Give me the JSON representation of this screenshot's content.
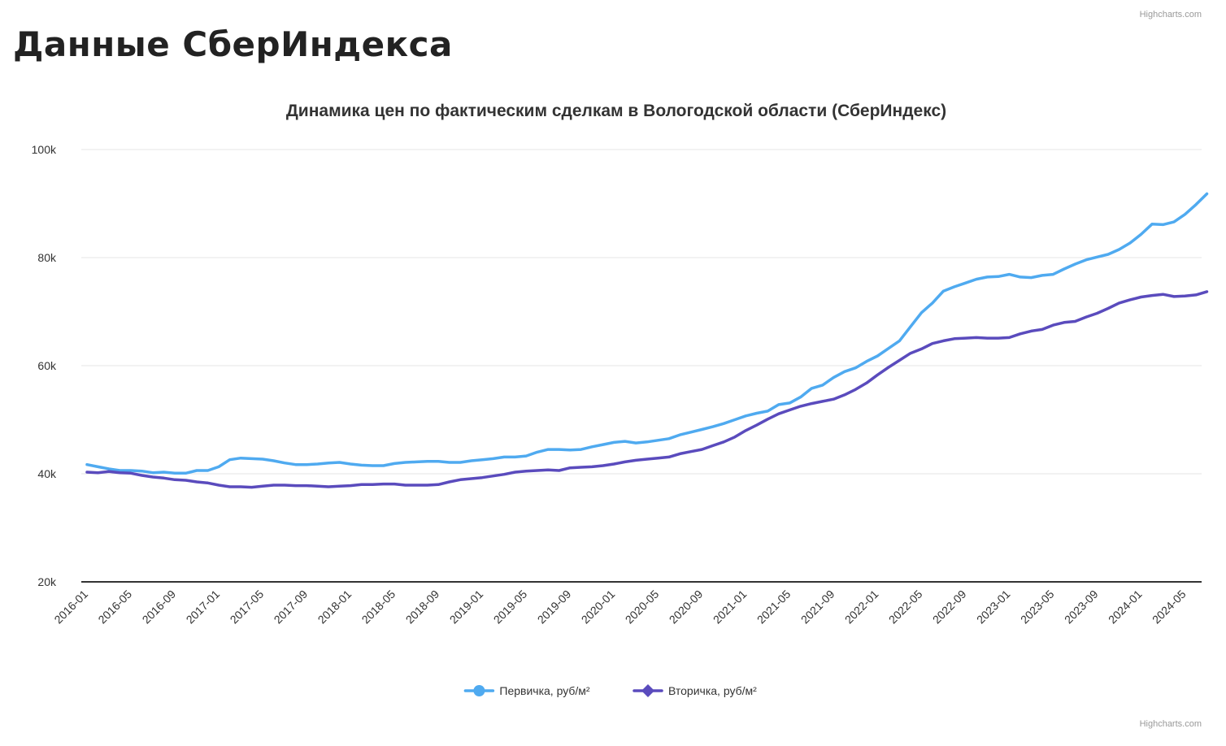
{
  "page": {
    "title": "Данные СберИндекса",
    "credits": "Highcharts.com"
  },
  "chart_data": {
    "type": "line",
    "title": "Динамика цен по фактическим сделкам в Вологодской области (СберИндекс)",
    "xlabel": "",
    "ylabel": "",
    "ylim": [
      20000,
      100000
    ],
    "yticks": [
      20000,
      40000,
      60000,
      80000,
      100000
    ],
    "ytick_labels": [
      "20k",
      "40k",
      "60k",
      "80k",
      "100k"
    ],
    "x_tick_labels": [
      "2016-01",
      "2016-05",
      "2016-09",
      "2017-01",
      "2017-05",
      "2017-09",
      "2018-01",
      "2018-05",
      "2018-09",
      "2019-01",
      "2019-05",
      "2019-09",
      "2020-01",
      "2020-05",
      "2020-09",
      "2021-01",
      "2021-05",
      "2021-09",
      "2022-01",
      "2022-05",
      "2022-09",
      "2023-01",
      "2023-05",
      "2023-09",
      "2024-01",
      "2024-05"
    ],
    "x_start": "2016-01",
    "x_end": "2024-06",
    "grid": true,
    "legend_position": "bottom-center",
    "series": [
      {
        "name": "Первичка, руб/м²",
        "color": "#4faaf0",
        "marker": "circle",
        "values": [
          41700,
          41300,
          40900,
          40600,
          40600,
          40500,
          40200,
          40300,
          40100,
          40100,
          40600,
          40600,
          41300,
          42600,
          42900,
          42800,
          42700,
          42400,
          42000,
          41700,
          41700,
          41800,
          42000,
          42100,
          41800,
          41600,
          41500,
          41500,
          41900,
          42100,
          42200,
          42300,
          42300,
          42100,
          42100,
          42400,
          42600,
          42800,
          43100,
          43100,
          43300,
          44000,
          44500,
          44500,
          44400,
          44500,
          45000,
          45400,
          45800,
          46000,
          45700,
          45900,
          46200,
          46500,
          47200,
          47700,
          48200,
          48700,
          49300,
          50000,
          50700,
          51200,
          51600,
          52800,
          53100,
          54200,
          55800,
          56400,
          57800,
          58900,
          59600,
          60800,
          61800,
          63200,
          64600,
          67200,
          69800,
          71600,
          73800,
          74600,
          75300,
          76000,
          76400,
          76500,
          76900,
          76400,
          76300,
          76700,
          76900,
          77900,
          78800,
          79600,
          80100,
          80600,
          81500,
          82700,
          84300,
          86200,
          86100,
          86600,
          88000,
          89800,
          91800
        ]
      },
      {
        "name": "Вторичка, руб/м²",
        "color": "#5a4bbd",
        "marker": "diamond",
        "values": [
          40300,
          40200,
          40400,
          40200,
          40100,
          39700,
          39400,
          39200,
          38900,
          38800,
          38500,
          38300,
          37900,
          37600,
          37600,
          37500,
          37700,
          37900,
          37900,
          37800,
          37800,
          37700,
          37600,
          37700,
          37800,
          38000,
          38000,
          38100,
          38100,
          37900,
          37900,
          37900,
          38000,
          38500,
          38900,
          39100,
          39300,
          39600,
          39900,
          40300,
          40500,
          40600,
          40700,
          40600,
          41100,
          41200,
          41300,
          41500,
          41800,
          42200,
          42500,
          42700,
          42900,
          43100,
          43700,
          44100,
          44500,
          45200,
          45900,
          46800,
          48000,
          49000,
          50100,
          51100,
          51800,
          52500,
          53000,
          53400,
          53800,
          54600,
          55600,
          56800,
          58300,
          59700,
          61000,
          62300,
          63100,
          64100,
          64600,
          65000,
          65100,
          65200,
          65100,
          65100,
          65200,
          65900,
          66400,
          66700,
          67500,
          68000,
          68200,
          69000,
          69700,
          70600,
          71600,
          72200,
          72700,
          73000,
          73200,
          72800,
          72900,
          73100,
          73700
        ]
      }
    ]
  }
}
